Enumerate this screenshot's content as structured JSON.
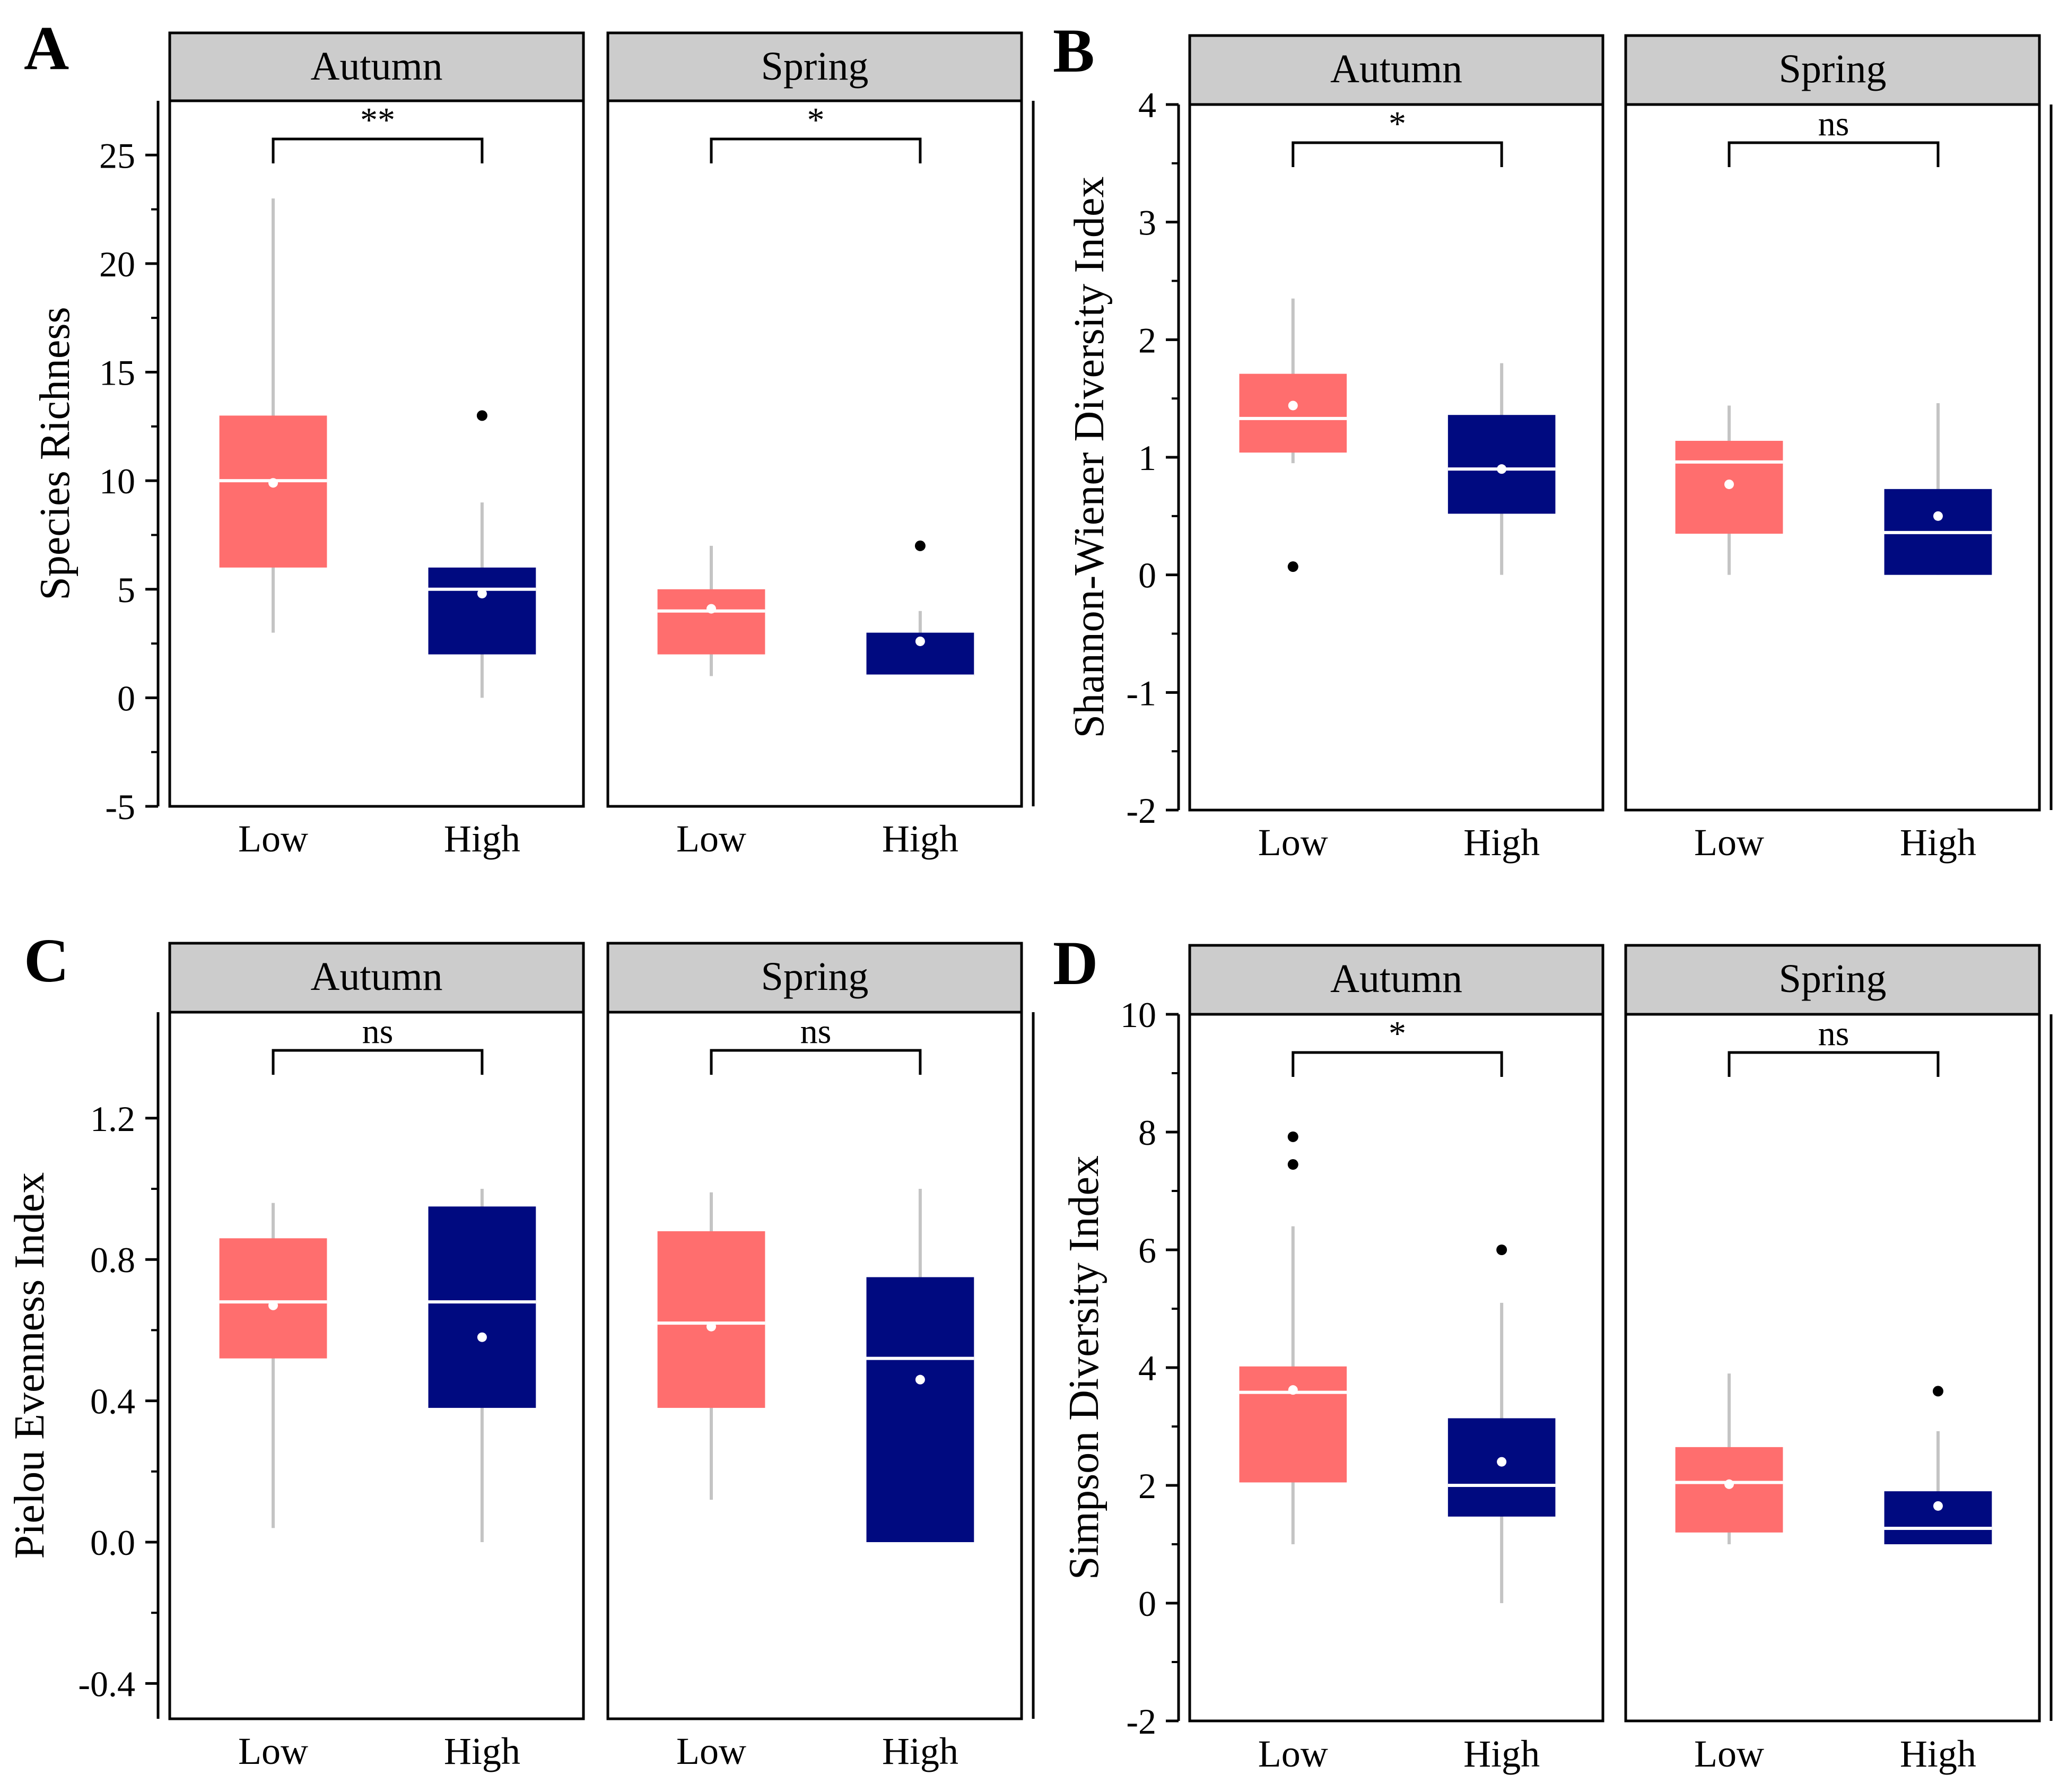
{
  "colors": {
    "low": "#ff6e6e",
    "high": "#000a80",
    "whisker": "#c4c4c4",
    "strip_bg": "#cccccc",
    "median_line": "#ffffff",
    "mean_point": "#ffffff",
    "outlier": "#000000"
  },
  "chart_data": [
    {
      "panel_label": "A",
      "type": "box",
      "ylabel": "Species Richness",
      "ylim": [
        -5,
        27.5
      ],
      "yticks": [
        -5,
        0,
        5,
        10,
        15,
        20,
        25
      ],
      "ytick_labels": [
        "-5",
        "0",
        "5",
        "10",
        "15",
        "20",
        "25"
      ],
      "categories": [
        "Low",
        "High"
      ],
      "facets": [
        {
          "name": "Autumn",
          "significance": "**",
          "boxes": [
            {
              "group": "Low",
              "whisker_low": 3,
              "q1": 6,
              "median": 10,
              "q3": 13,
              "whisker_high": 23,
              "mean": 9.9,
              "outliers": []
            },
            {
              "group": "High",
              "whisker_low": 0,
              "q1": 2,
              "median": 5,
              "q3": 6,
              "whisker_high": 9,
              "mean": 4.8,
              "outliers": [
                13
              ]
            }
          ]
        },
        {
          "name": "Spring",
          "significance": "*",
          "boxes": [
            {
              "group": "Low",
              "whisker_low": 1,
              "q1": 2,
              "median": 4,
              "q3": 5,
              "whisker_high": 7,
              "mean": 4.1,
              "outliers": []
            },
            {
              "group": "High",
              "whisker_low": 1,
              "q1": 1,
              "median": 1,
              "q3": 3,
              "whisker_high": 4,
              "mean": 2.6,
              "outliers": [
                7
              ]
            }
          ]
        }
      ]
    },
    {
      "panel_label": "B",
      "type": "box",
      "ylabel": "Shannon-Wiener Diversity Index",
      "ylim": [
        -2,
        4
      ],
      "yticks": [
        -2,
        -1,
        0,
        1,
        2,
        3,
        4
      ],
      "ytick_labels": [
        "-2",
        "-1",
        "0",
        "1",
        "2",
        "3",
        "4"
      ],
      "categories": [
        "Low",
        "High"
      ],
      "facets": [
        {
          "name": "Autumn",
          "significance": "*",
          "boxes": [
            {
              "group": "Low",
              "whisker_low": 0.95,
              "q1": 1.04,
              "median": 1.33,
              "q3": 1.71,
              "whisker_high": 2.35,
              "mean": 1.44,
              "outliers": [
                0.07
              ]
            },
            {
              "group": "High",
              "whisker_low": 0.0,
              "q1": 0.52,
              "median": 0.9,
              "q3": 1.36,
              "whisker_high": 1.8,
              "mean": 0.9,
              "outliers": []
            }
          ]
        },
        {
          "name": "Spring",
          "significance": "ns",
          "boxes": [
            {
              "group": "Low",
              "whisker_low": 0.0,
              "q1": 0.35,
              "median": 0.96,
              "q3": 1.14,
              "whisker_high": 1.44,
              "mean": 0.77,
              "outliers": []
            },
            {
              "group": "High",
              "whisker_low": 0.0,
              "q1": 0.0,
              "median": 0.36,
              "q3": 0.73,
              "whisker_high": 1.46,
              "mean": 0.5,
              "outliers": []
            }
          ]
        }
      ]
    },
    {
      "panel_label": "C",
      "type": "box",
      "ylabel": "Pielou Evenness Index",
      "ylim": [
        -0.5,
        1.5
      ],
      "yticks": [
        -0.4,
        0.0,
        0.4,
        0.8,
        1.2
      ],
      "ytick_labels": [
        "-0.4",
        "0.0",
        "0.4",
        "0.8",
        "1.2"
      ],
      "categories": [
        "Low",
        "High"
      ],
      "facets": [
        {
          "name": "Autumn",
          "significance": "ns",
          "boxes": [
            {
              "group": "Low",
              "whisker_low": 0.04,
              "q1": 0.52,
              "median": 0.68,
              "q3": 0.86,
              "whisker_high": 0.96,
              "mean": 0.67,
              "outliers": []
            },
            {
              "group": "High",
              "whisker_low": 0.0,
              "q1": 0.38,
              "median": 0.68,
              "q3": 0.95,
              "whisker_high": 1.0,
              "mean": 0.58,
              "outliers": []
            }
          ]
        },
        {
          "name": "Spring",
          "significance": "ns",
          "boxes": [
            {
              "group": "Low",
              "whisker_low": 0.12,
              "q1": 0.38,
              "median": 0.62,
              "q3": 0.88,
              "whisker_high": 0.99,
              "mean": 0.61,
              "outliers": []
            },
            {
              "group": "High",
              "whisker_low": 0.0,
              "q1": 0.0,
              "median": 0.52,
              "q3": 0.75,
              "whisker_high": 1.0,
              "mean": 0.46,
              "outliers": []
            }
          ]
        }
      ]
    },
    {
      "panel_label": "D",
      "type": "box",
      "ylabel": "Simpson Diversity Index",
      "ylim": [
        -2,
        10
      ],
      "yticks": [
        -2,
        0,
        2,
        4,
        6,
        8,
        10
      ],
      "ytick_labels": [
        "-2",
        "0",
        "2",
        "4",
        "6",
        "8",
        "10"
      ],
      "categories": [
        "Low",
        "High"
      ],
      "facets": [
        {
          "name": "Autumn",
          "significance": "*",
          "boxes": [
            {
              "group": "Low",
              "whisker_low": 1.0,
              "q1": 2.05,
              "median": 3.58,
              "q3": 4.02,
              "whisker_high": 6.4,
              "mean": 3.62,
              "outliers": [
                7.45,
                7.92
              ]
            },
            {
              "group": "High",
              "whisker_low": 0.0,
              "q1": 1.47,
              "median": 2.0,
              "q3": 3.14,
              "whisker_high": 5.1,
              "mean": 2.4,
              "outliers": [
                6.0
              ]
            }
          ]
        },
        {
          "name": "Spring",
          "significance": "ns",
          "boxes": [
            {
              "group": "Low",
              "whisker_low": 1.0,
              "q1": 1.2,
              "median": 2.05,
              "q3": 2.65,
              "whisker_high": 3.9,
              "mean": 2.02,
              "outliers": []
            },
            {
              "group": "High",
              "whisker_low": 1.0,
              "q1": 1.0,
              "median": 1.27,
              "q3": 1.9,
              "whisker_high": 2.92,
              "mean": 1.65,
              "outliers": [
                3.6
              ]
            }
          ]
        }
      ]
    }
  ]
}
